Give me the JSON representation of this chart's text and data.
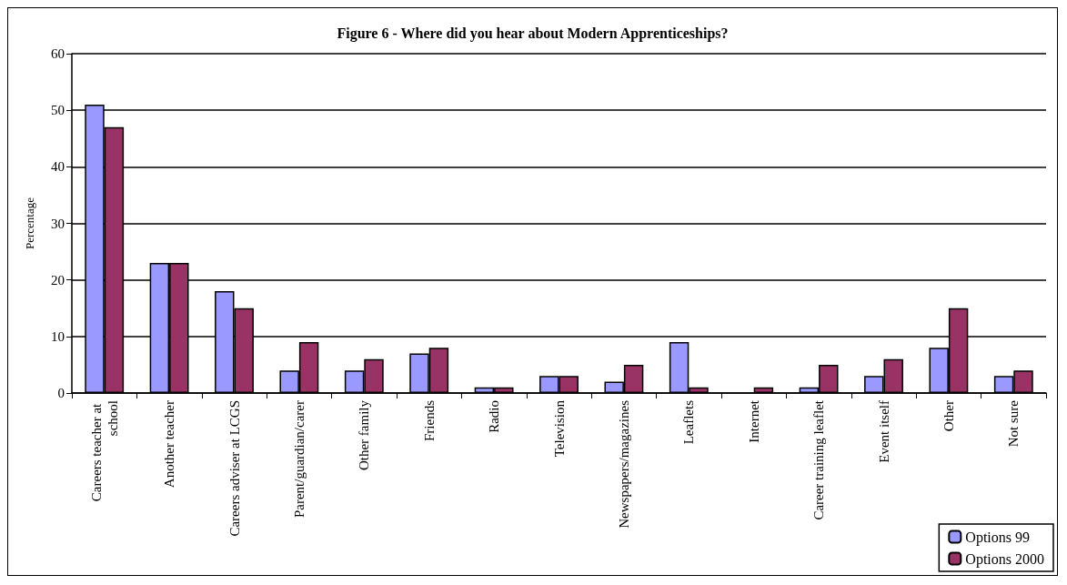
{
  "chart_data": {
    "type": "bar",
    "title": "Figure 6 - Where did you hear about Modern Apprenticeships?",
    "ylabel": "Percentage",
    "categories": [
      "Careers teacher at school",
      "Another teacher",
      "Careers adviser at LCGS",
      "Parent/guardian/carer",
      "Other family",
      "Friends",
      "Radio",
      "Television",
      "Newspapers/magazines",
      "Leaflets",
      "Internet",
      "Career training leaflet",
      "Event itself",
      "Other",
      "Not sure"
    ],
    "series": [
      {
        "name": "Options 99",
        "color": "#9999ff",
        "values": [
          51,
          23,
          18,
          4,
          4,
          7,
          1,
          3,
          2,
          9,
          null,
          1,
          3,
          8,
          3
        ]
      },
      {
        "name": "Options 2000",
        "color": "#993366",
        "values": [
          47,
          23,
          15,
          9,
          6,
          8,
          1,
          3,
          5,
          1,
          1,
          5,
          6,
          15,
          4
        ]
      }
    ],
    "ylim": [
      0,
      60
    ],
    "yticks": [
      0,
      10,
      20,
      30,
      40,
      50,
      60
    ],
    "grid": "y",
    "legend": "bottom right"
  }
}
